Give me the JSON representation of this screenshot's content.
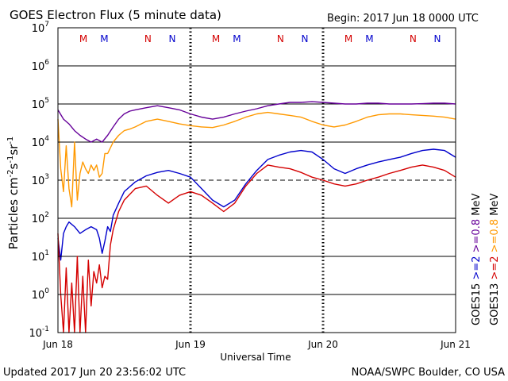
{
  "header": {
    "title": "GOES Electron Flux (5 minute data)",
    "begin": "Begin: 2017 Jun 18 0000 UTC"
  },
  "footer": {
    "updated": "Updated 2017 Jun 20 23:56:02 UTC",
    "credit": "NOAA/SWPC Boulder, CO USA"
  },
  "chart_data": {
    "type": "line",
    "title": "GOES Electron Flux (5 minute data)",
    "xlabel": "Universal Time",
    "ylabel": "Particles cm-2s-1sr-1",
    "ylabel_parts": {
      "base": "Particles cm",
      "e1": "-2",
      "mid1": "s",
      "e2": "-1",
      "mid2": "sr",
      "e3": "-1"
    },
    "y_scale": "log",
    "ylim": [
      0.1,
      10000000
    ],
    "xlim": [
      0,
      72
    ],
    "x_unit": "hours since 2017 Jun 18 0000 UTC",
    "x_ticks": [
      {
        "hour": 0,
        "label": "Jun 18"
      },
      {
        "hour": 24,
        "label": "Jun 19"
      },
      {
        "hour": 48,
        "label": "Jun 20"
      },
      {
        "hour": 72,
        "label": "Jun 21"
      }
    ],
    "y_ticks": [
      {
        "value": 0.1,
        "base": "10",
        "exp": "-1"
      },
      {
        "value": 1,
        "base": "10",
        "exp": "0"
      },
      {
        "value": 10,
        "base": "10",
        "exp": "1"
      },
      {
        "value": 100,
        "base": "10",
        "exp": "2"
      },
      {
        "value": 1000,
        "base": "10",
        "exp": "3"
      },
      {
        "value": 10000,
        "base": "10",
        "exp": "4"
      },
      {
        "value": 100000,
        "base": "10",
        "exp": "5"
      },
      {
        "value": 1000000,
        "base": "10",
        "exp": "6"
      },
      {
        "value": 10000000,
        "base": "10",
        "exp": "7"
      }
    ],
    "threshold": {
      "value": 1000,
      "style": "dashed"
    },
    "markers": [
      {
        "hour": 4.6,
        "label": "M",
        "color": "#d40000"
      },
      {
        "hour": 8.4,
        "label": "M",
        "color": "#0000cc"
      },
      {
        "hour": 16.3,
        "label": "N",
        "color": "#d40000"
      },
      {
        "hour": 20.7,
        "label": "N",
        "color": "#0000cc"
      },
      {
        "hour": 28.6,
        "label": "M",
        "color": "#d40000"
      },
      {
        "hour": 32.4,
        "label": "M",
        "color": "#0000cc"
      },
      {
        "hour": 40.3,
        "label": "N",
        "color": "#d40000"
      },
      {
        "hour": 44.7,
        "label": "N",
        "color": "#0000cc"
      },
      {
        "hour": 52.6,
        "label": "M",
        "color": "#d40000"
      },
      {
        "hour": 56.4,
        "label": "M",
        "color": "#0000cc"
      },
      {
        "hour": 64.3,
        "label": "N",
        "color": "#d40000"
      },
      {
        "hour": 68.7,
        "label": "N",
        "color": "#0000cc"
      }
    ],
    "legend": {
      "placement": "right-outside",
      "col1": [
        {
          "text": "GOES15",
          "color": "#000000"
        },
        {
          "text": ">=2",
          "color": "#0000cc"
        },
        {
          "text": ">=0.8",
          "color": "#660099"
        },
        {
          "text": "MeV",
          "color": "#000000"
        }
      ],
      "col2": [
        {
          "text": "GOES13",
          "color": "#000000"
        },
        {
          "text": ">=2",
          "color": "#d40000"
        },
        {
          "text": ">=0.8",
          "color": "#ff9900"
        },
        {
          "text": "MeV",
          "color": "#000000"
        }
      ]
    },
    "series": [
      {
        "name": "GOES15 >=0.8 MeV",
        "color": "#660099",
        "x": [
          0,
          1,
          2,
          3,
          4,
          5,
          6,
          7,
          8,
          9,
          10,
          11,
          12,
          13,
          14,
          16,
          18,
          20,
          22,
          24,
          26,
          28,
          30,
          32,
          34,
          36,
          38,
          40,
          42,
          44,
          46,
          48,
          50,
          52,
          54,
          56,
          58,
          60,
          62,
          64,
          66,
          68,
          70,
          72
        ],
        "y": [
          70000,
          40000,
          30000,
          20000,
          15000,
          12000,
          10000,
          12000,
          10000,
          15000,
          25000,
          40000,
          55000,
          65000,
          70000,
          80000,
          90000,
          80000,
          70000,
          55000,
          45000,
          40000,
          45000,
          55000,
          65000,
          75000,
          90000,
          100000,
          110000,
          110000,
          115000,
          110000,
          105000,
          100000,
          100000,
          105000,
          105000,
          100000,
          100000,
          100000,
          102000,
          105000,
          105000,
          100000
        ]
      },
      {
        "name": "GOES13 >=0.8 MeV",
        "color": "#ff9900",
        "x": [
          0,
          0.5,
          1,
          1.5,
          2,
          2.5,
          3,
          3.5,
          4,
          4.5,
          5,
          5.5,
          6,
          6.5,
          7,
          7.5,
          8,
          8.5,
          9,
          10,
          11,
          12,
          13,
          14,
          16,
          18,
          20,
          22,
          24,
          26,
          28,
          30,
          32,
          34,
          36,
          38,
          40,
          42,
          44,
          46,
          48,
          50,
          52,
          54,
          56,
          58,
          60,
          62,
          64,
          66,
          68,
          70,
          72
        ],
        "y": [
          40000,
          2000,
          500,
          8000,
          600,
          200,
          10000,
          300,
          1500,
          3000,
          2000,
          1500,
          2500,
          1800,
          2500,
          1200,
          1500,
          5000,
          5000,
          10000,
          15000,
          20000,
          22000,
          25000,
          35000,
          40000,
          35000,
          30000,
          27000,
          25000,
          24000,
          28000,
          35000,
          45000,
          55000,
          60000,
          55000,
          50000,
          45000,
          35000,
          28000,
          25000,
          28000,
          35000,
          45000,
          52000,
          55000,
          55000,
          52000,
          50000,
          48000,
          45000,
          40000
        ]
      },
      {
        "name": "GOES15 >=2 MeV",
        "color": "#0000cc",
        "x": [
          0,
          0.5,
          1,
          1.5,
          2,
          3,
          4,
          5,
          6,
          7,
          7.5,
          8,
          8.5,
          9,
          9.5,
          10,
          11,
          12,
          14,
          16,
          18,
          20,
          22,
          24,
          26,
          28,
          30,
          32,
          34,
          36,
          38,
          40,
          42,
          44,
          46,
          48,
          50,
          52,
          54,
          56,
          58,
          60,
          62,
          64,
          66,
          68,
          70,
          72
        ],
        "y": [
          30,
          8,
          40,
          60,
          80,
          60,
          40,
          50,
          60,
          50,
          30,
          12,
          25,
          60,
          45,
          120,
          250,
          500,
          900,
          1300,
          1600,
          1800,
          1500,
          1200,
          600,
          300,
          200,
          300,
          800,
          1800,
          3500,
          4500,
          5500,
          6000,
          5500,
          3500,
          2000,
          1500,
          2000,
          2500,
          3000,
          3500,
          4000,
          5000,
          6000,
          6500,
          6000,
          4000
        ]
      },
      {
        "name": "GOES13 >=2 MeV",
        "color": "#d40000",
        "x": [
          0,
          0.5,
          1,
          1.5,
          2,
          2.5,
          3,
          3.5,
          4,
          4.5,
          5,
          5.5,
          6,
          6.5,
          7,
          7.5,
          8,
          8.5,
          9,
          9.5,
          10,
          11,
          12,
          14,
          16,
          18,
          20,
          22,
          24,
          26,
          28,
          30,
          32,
          34,
          36,
          38,
          40,
          42,
          44,
          46,
          48,
          50,
          52,
          54,
          56,
          58,
          60,
          62,
          64,
          66,
          68,
          70,
          72
        ],
        "y": [
          40,
          1,
          0.1,
          5,
          0.1,
          2,
          0.1,
          10,
          0.1,
          3,
          0.1,
          8,
          0.5,
          4,
          2,
          6,
          1.5,
          3,
          2.5,
          20,
          50,
          150,
          300,
          600,
          700,
          400,
          250,
          400,
          500,
          400,
          250,
          150,
          250,
          700,
          1500,
          2500,
          2200,
          2000,
          1600,
          1200,
          1000,
          800,
          700,
          800,
          1000,
          1200,
          1500,
          1800,
          2200,
          2500,
          2200,
          1800,
          1200
        ]
      }
    ]
  }
}
